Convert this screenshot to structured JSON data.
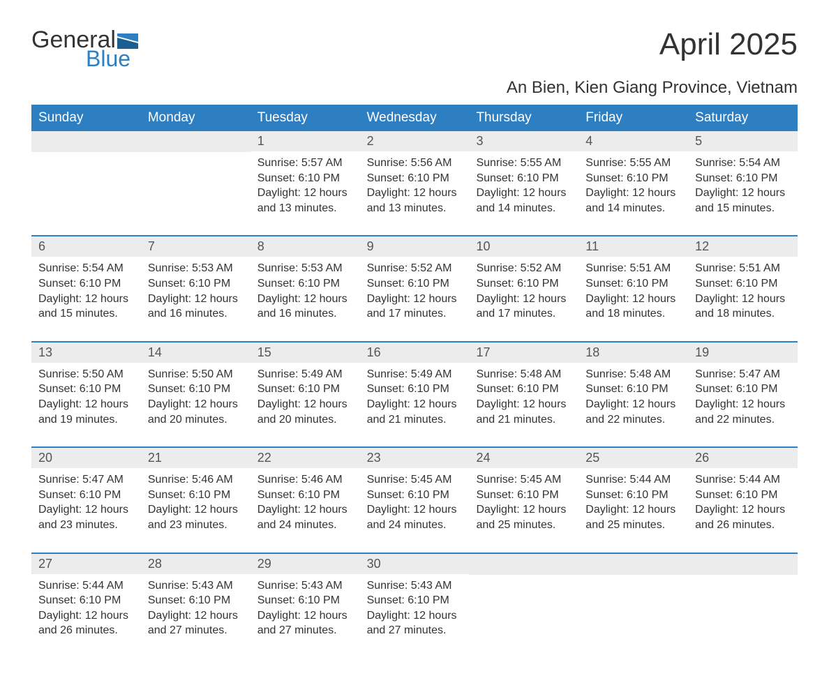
{
  "brand": {
    "word1": "General",
    "word2": "Blue",
    "accent": "#2d7fc1"
  },
  "title": "April 2025",
  "location": "An Bien, Kien Giang Province, Vietnam",
  "colors": {
    "header_bg": "#2d7fc1",
    "header_text": "#ffffff",
    "daynum_bg": "#ececec",
    "text": "#333333",
    "week_border": "#2d7fc1"
  },
  "day_labels": [
    "Sunday",
    "Monday",
    "Tuesday",
    "Wednesday",
    "Thursday",
    "Friday",
    "Saturday"
  ],
  "weeks": [
    [
      {
        "num": "",
        "sunrise": "",
        "sunset": "",
        "daylight": ""
      },
      {
        "num": "",
        "sunrise": "",
        "sunset": "",
        "daylight": ""
      },
      {
        "num": "1",
        "sunrise": "Sunrise: 5:57 AM",
        "sunset": "Sunset: 6:10 PM",
        "daylight": "Daylight: 12 hours and 13 minutes."
      },
      {
        "num": "2",
        "sunrise": "Sunrise: 5:56 AM",
        "sunset": "Sunset: 6:10 PM",
        "daylight": "Daylight: 12 hours and 13 minutes."
      },
      {
        "num": "3",
        "sunrise": "Sunrise: 5:55 AM",
        "sunset": "Sunset: 6:10 PM",
        "daylight": "Daylight: 12 hours and 14 minutes."
      },
      {
        "num": "4",
        "sunrise": "Sunrise: 5:55 AM",
        "sunset": "Sunset: 6:10 PM",
        "daylight": "Daylight: 12 hours and 14 minutes."
      },
      {
        "num": "5",
        "sunrise": "Sunrise: 5:54 AM",
        "sunset": "Sunset: 6:10 PM",
        "daylight": "Daylight: 12 hours and 15 minutes."
      }
    ],
    [
      {
        "num": "6",
        "sunrise": "Sunrise: 5:54 AM",
        "sunset": "Sunset: 6:10 PM",
        "daylight": "Daylight: 12 hours and 15 minutes."
      },
      {
        "num": "7",
        "sunrise": "Sunrise: 5:53 AM",
        "sunset": "Sunset: 6:10 PM",
        "daylight": "Daylight: 12 hours and 16 minutes."
      },
      {
        "num": "8",
        "sunrise": "Sunrise: 5:53 AM",
        "sunset": "Sunset: 6:10 PM",
        "daylight": "Daylight: 12 hours and 16 minutes."
      },
      {
        "num": "9",
        "sunrise": "Sunrise: 5:52 AM",
        "sunset": "Sunset: 6:10 PM",
        "daylight": "Daylight: 12 hours and 17 minutes."
      },
      {
        "num": "10",
        "sunrise": "Sunrise: 5:52 AM",
        "sunset": "Sunset: 6:10 PM",
        "daylight": "Daylight: 12 hours and 17 minutes."
      },
      {
        "num": "11",
        "sunrise": "Sunrise: 5:51 AM",
        "sunset": "Sunset: 6:10 PM",
        "daylight": "Daylight: 12 hours and 18 minutes."
      },
      {
        "num": "12",
        "sunrise": "Sunrise: 5:51 AM",
        "sunset": "Sunset: 6:10 PM",
        "daylight": "Daylight: 12 hours and 18 minutes."
      }
    ],
    [
      {
        "num": "13",
        "sunrise": "Sunrise: 5:50 AM",
        "sunset": "Sunset: 6:10 PM",
        "daylight": "Daylight: 12 hours and 19 minutes."
      },
      {
        "num": "14",
        "sunrise": "Sunrise: 5:50 AM",
        "sunset": "Sunset: 6:10 PM",
        "daylight": "Daylight: 12 hours and 20 minutes."
      },
      {
        "num": "15",
        "sunrise": "Sunrise: 5:49 AM",
        "sunset": "Sunset: 6:10 PM",
        "daylight": "Daylight: 12 hours and 20 minutes."
      },
      {
        "num": "16",
        "sunrise": "Sunrise: 5:49 AM",
        "sunset": "Sunset: 6:10 PM",
        "daylight": "Daylight: 12 hours and 21 minutes."
      },
      {
        "num": "17",
        "sunrise": "Sunrise: 5:48 AM",
        "sunset": "Sunset: 6:10 PM",
        "daylight": "Daylight: 12 hours and 21 minutes."
      },
      {
        "num": "18",
        "sunrise": "Sunrise: 5:48 AM",
        "sunset": "Sunset: 6:10 PM",
        "daylight": "Daylight: 12 hours and 22 minutes."
      },
      {
        "num": "19",
        "sunrise": "Sunrise: 5:47 AM",
        "sunset": "Sunset: 6:10 PM",
        "daylight": "Daylight: 12 hours and 22 minutes."
      }
    ],
    [
      {
        "num": "20",
        "sunrise": "Sunrise: 5:47 AM",
        "sunset": "Sunset: 6:10 PM",
        "daylight": "Daylight: 12 hours and 23 minutes."
      },
      {
        "num": "21",
        "sunrise": "Sunrise: 5:46 AM",
        "sunset": "Sunset: 6:10 PM",
        "daylight": "Daylight: 12 hours and 23 minutes."
      },
      {
        "num": "22",
        "sunrise": "Sunrise: 5:46 AM",
        "sunset": "Sunset: 6:10 PM",
        "daylight": "Daylight: 12 hours and 24 minutes."
      },
      {
        "num": "23",
        "sunrise": "Sunrise: 5:45 AM",
        "sunset": "Sunset: 6:10 PM",
        "daylight": "Daylight: 12 hours and 24 minutes."
      },
      {
        "num": "24",
        "sunrise": "Sunrise: 5:45 AM",
        "sunset": "Sunset: 6:10 PM",
        "daylight": "Daylight: 12 hours and 25 minutes."
      },
      {
        "num": "25",
        "sunrise": "Sunrise: 5:44 AM",
        "sunset": "Sunset: 6:10 PM",
        "daylight": "Daylight: 12 hours and 25 minutes."
      },
      {
        "num": "26",
        "sunrise": "Sunrise: 5:44 AM",
        "sunset": "Sunset: 6:10 PM",
        "daylight": "Daylight: 12 hours and 26 minutes."
      }
    ],
    [
      {
        "num": "27",
        "sunrise": "Sunrise: 5:44 AM",
        "sunset": "Sunset: 6:10 PM",
        "daylight": "Daylight: 12 hours and 26 minutes."
      },
      {
        "num": "28",
        "sunrise": "Sunrise: 5:43 AM",
        "sunset": "Sunset: 6:10 PM",
        "daylight": "Daylight: 12 hours and 27 minutes."
      },
      {
        "num": "29",
        "sunrise": "Sunrise: 5:43 AM",
        "sunset": "Sunset: 6:10 PM",
        "daylight": "Daylight: 12 hours and 27 minutes."
      },
      {
        "num": "30",
        "sunrise": "Sunrise: 5:43 AM",
        "sunset": "Sunset: 6:10 PM",
        "daylight": "Daylight: 12 hours and 27 minutes."
      },
      {
        "num": "",
        "sunrise": "",
        "sunset": "",
        "daylight": ""
      },
      {
        "num": "",
        "sunrise": "",
        "sunset": "",
        "daylight": ""
      },
      {
        "num": "",
        "sunrise": "",
        "sunset": "",
        "daylight": ""
      }
    ]
  ]
}
